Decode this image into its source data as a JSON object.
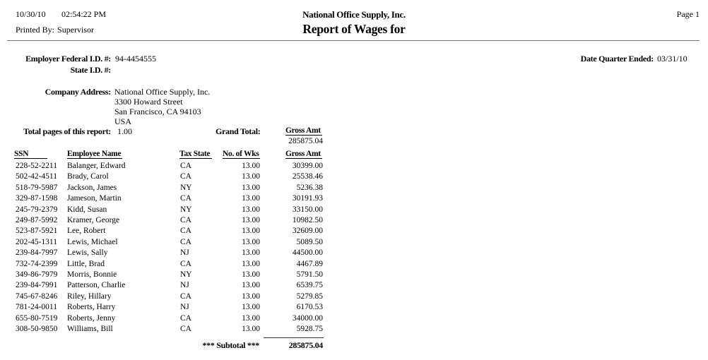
{
  "header": {
    "date": "10/30/10",
    "time": "02:54:22 PM",
    "printed_by_label": "Printed By:",
    "printed_by_value": "Supervisor",
    "company_name": "National Office Supply, Inc.",
    "report_title": "Report of Wages for",
    "page_label": "Page 1"
  },
  "ids": {
    "federal_id_label": "Employer Federal I.D. #:",
    "federal_id_value": "94-4454555",
    "state_id_label": "State I.D. #:",
    "quarter_ended_label": "Date Quarter Ended:",
    "quarter_ended_value": "03/31/10"
  },
  "company_address": {
    "label": "Company Address:",
    "line1": "National Office Supply, Inc.",
    "line2": "3300 Howard Street",
    "line3": "San Francisco, CA 94103",
    "line4": "USA"
  },
  "totals": {
    "pages_label": "Total pages of this report:",
    "pages_value": "1.00",
    "grand_total_label": "Grand Total:",
    "gross_amt_header": "Gross Amt",
    "grand_total_value": "285875.04"
  },
  "table": {
    "headers": {
      "ssn": "SSN",
      "name": "Employee Name",
      "tax_state": "Tax State",
      "weeks": "No. of Wks",
      "gross": "Gross Amt"
    },
    "rows": [
      {
        "ssn": "228-52-2211",
        "name": "Balanger, Edward",
        "state": "CA",
        "weeks": "13.00",
        "gross": "30399.00"
      },
      {
        "ssn": "502-42-4511",
        "name": "Brady, Carol",
        "state": "CA",
        "weeks": "13.00",
        "gross": "25538.46"
      },
      {
        "ssn": "518-79-5987",
        "name": "Jackson, James",
        "state": "NY",
        "weeks": "13.00",
        "gross": "5236.38"
      },
      {
        "ssn": "329-87-1598",
        "name": "Jameson, Martin",
        "state": "CA",
        "weeks": "13.00",
        "gross": "30191.93"
      },
      {
        "ssn": "245-79-2379",
        "name": "Kidd, Susan",
        "state": "NY",
        "weeks": "13.00",
        "gross": "33150.00"
      },
      {
        "ssn": "249-87-5992",
        "name": "Kramer, George",
        "state": "CA",
        "weeks": "13.00",
        "gross": "10982.50"
      },
      {
        "ssn": "523-87-5921",
        "name": "Lee, Robert",
        "state": "CA",
        "weeks": "13.00",
        "gross": "32609.00"
      },
      {
        "ssn": "202-45-1311",
        "name": "Lewis, Michael",
        "state": "CA",
        "weeks": "13.00",
        "gross": "5089.50"
      },
      {
        "ssn": "239-84-7997",
        "name": "Lewis, Sally",
        "state": "NJ",
        "weeks": "13.00",
        "gross": "44500.00"
      },
      {
        "ssn": "732-74-2399",
        "name": "Little, Brad",
        "state": "CA",
        "weeks": "13.00",
        "gross": "4467.89"
      },
      {
        "ssn": "349-86-7979",
        "name": "Morris, Bonnie",
        "state": "NY",
        "weeks": "13.00",
        "gross": "5791.50"
      },
      {
        "ssn": "239-84-7991",
        "name": "Patterson, Charlie",
        "state": "NJ",
        "weeks": "13.00",
        "gross": "6539.75"
      },
      {
        "ssn": "745-67-8246",
        "name": "Riley, Hillary",
        "state": "CA",
        "weeks": "13.00",
        "gross": "5279.85"
      },
      {
        "ssn": "781-24-0011",
        "name": "Roberts, Harry",
        "state": "NJ",
        "weeks": "13.00",
        "gross": "6170.53"
      },
      {
        "ssn": "655-80-7519",
        "name": "Roberts, Jenny",
        "state": "CA",
        "weeks": "13.00",
        "gross": "34000.00"
      },
      {
        "ssn": "308-50-9850",
        "name": "Williams, Bill",
        "state": "CA",
        "weeks": "13.00",
        "gross": "5928.75"
      }
    ],
    "subtotal_label": "*** Subtotal ***",
    "subtotal_value": "285875.04"
  }
}
